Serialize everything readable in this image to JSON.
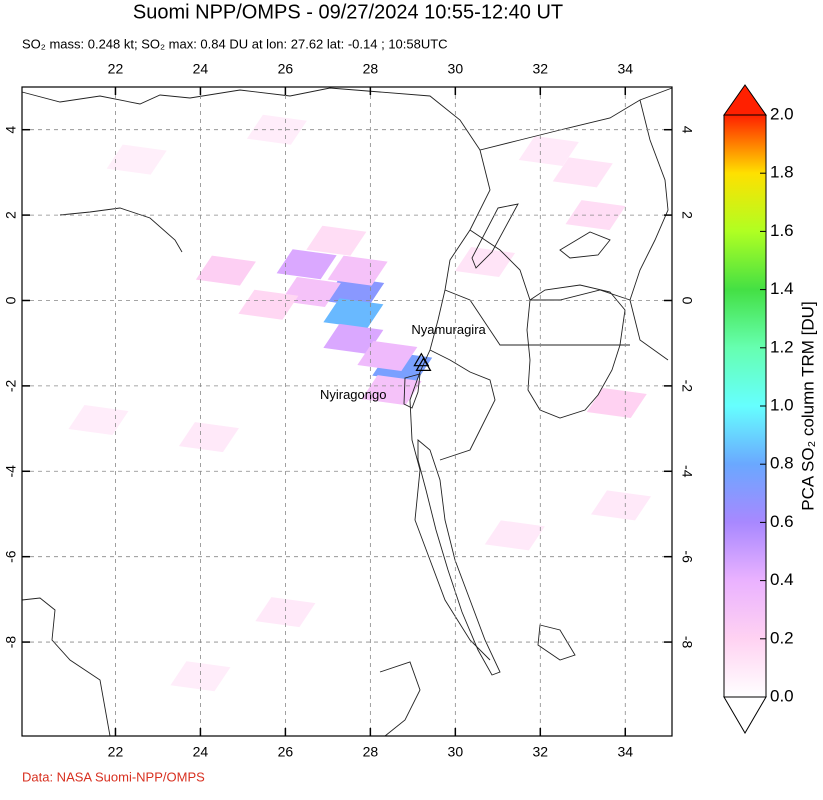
{
  "chart_data": {
    "type": "map",
    "title": "Suomi NPP/OMPS - 09/27/2024 10:55-12:40 UT",
    "subtitle": "SO₂ mass: 0.248 kt; SO₂ max: 0.84 DU at lon: 27.62 lat: -0.14 ; 10:58UTC",
    "footer": "Data: NASA Suomi-NPP/OMPS",
    "xlim": [
      19.8,
      35.1
    ],
    "ylim": [
      -10.2,
      5.0
    ],
    "xticks": [
      22,
      24,
      26,
      28,
      30,
      32,
      34
    ],
    "yticks": [
      4,
      2,
      0,
      -2,
      -4,
      -6,
      -8
    ],
    "grid": true,
    "colorbar": {
      "label": "PCA SO₂ column TRM [DU]",
      "lim": [
        0,
        2
      ],
      "ticks": [
        {
          "value": 0,
          "label": "0.0"
        },
        {
          "value": 0.2,
          "label": "0.2"
        },
        {
          "value": 0.4,
          "label": "0.4"
        },
        {
          "value": 0.6,
          "label": "0.6"
        },
        {
          "value": 0.8,
          "label": "0.8"
        },
        {
          "value": 1,
          "label": "1.0"
        },
        {
          "value": 1.2,
          "label": "1.2"
        },
        {
          "value": 1.4,
          "label": "1.4"
        },
        {
          "value": 1.6,
          "label": "1.6"
        },
        {
          "value": 1.8,
          "label": "1.8"
        },
        {
          "value": 2,
          "label": "2.0"
        }
      ],
      "colors": [
        "#ffffff",
        "#ffd2f2",
        "#eab2ff",
        "#a888ff",
        "#6aa8ff",
        "#66ffff",
        "#66ffb0",
        "#44e044",
        "#b0ff22",
        "#ffe000",
        "#ff2000"
      ]
    },
    "volcanoes": [
      {
        "name": "Nyamuragira",
        "lon": 29.2,
        "lat": -1.41
      },
      {
        "name": "Nyiragongo",
        "lon": 29.25,
        "lat": -1.52
      }
    ],
    "so2_pixels": [
      {
        "lon": 27.62,
        "lat": 0.2,
        "value": 0.7
      },
      {
        "lon": 27.6,
        "lat": -0.3,
        "value": 0.84
      },
      {
        "lon": 28.75,
        "lat": -1.55,
        "value": 0.75
      },
      {
        "lon": 27.6,
        "lat": -0.9,
        "value": 0.45
      },
      {
        "lon": 26.5,
        "lat": 0.85,
        "value": 0.45
      },
      {
        "lon": 26.6,
        "lat": 0.2,
        "value": 0.3
      },
      {
        "lon": 27.7,
        "lat": 0.7,
        "value": 0.3
      },
      {
        "lon": 28.4,
        "lat": -1.3,
        "value": 0.35
      },
      {
        "lon": 28.5,
        "lat": -2.1,
        "value": 0.3
      },
      {
        "lon": 24.6,
        "lat": 0.7,
        "value": 0.22
      },
      {
        "lon": 25.6,
        "lat": -0.1,
        "value": 0.18
      },
      {
        "lon": 27.2,
        "lat": 1.4,
        "value": 0.15
      },
      {
        "lon": 33.3,
        "lat": 2.0,
        "value": 0.15
      },
      {
        "lon": 33.8,
        "lat": -2.4,
        "value": 0.2
      },
      {
        "lon": 33.0,
        "lat": 3.0,
        "value": 0.12
      },
      {
        "lon": 24.2,
        "lat": -3.2,
        "value": 0.1
      },
      {
        "lon": 25.8,
        "lat": 4.0,
        "value": 0.08
      },
      {
        "lon": 31.4,
        "lat": -5.5,
        "value": 0.1
      },
      {
        "lon": 21.6,
        "lat": -2.8,
        "value": 0.08
      },
      {
        "lon": 26.0,
        "lat": -7.3,
        "value": 0.1
      },
      {
        "lon": 33.9,
        "lat": -4.8,
        "value": 0.1
      },
      {
        "lon": 30.7,
        "lat": 0.9,
        "value": 0.12
      },
      {
        "lon": 22.5,
        "lat": 3.3,
        "value": 0.07
      },
      {
        "lon": 24.0,
        "lat": -8.8,
        "value": 0.08
      },
      {
        "lon": 32.2,
        "lat": 3.5,
        "value": 0.1
      }
    ]
  }
}
